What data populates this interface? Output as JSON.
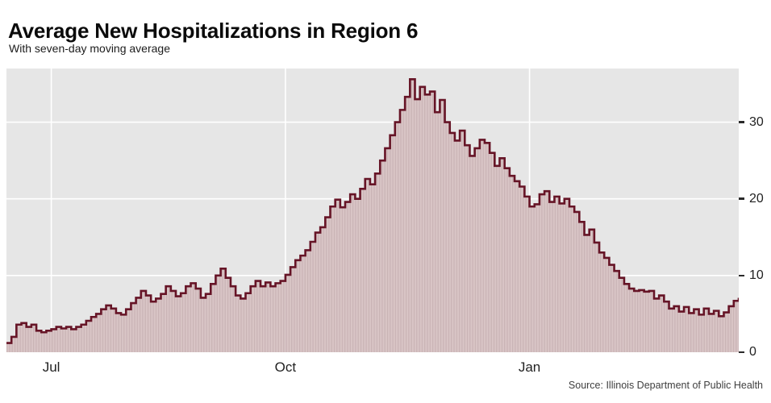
{
  "header": {
    "title": "Average New Hospitalizations in Region 6",
    "subtitle": "With seven-day moving average"
  },
  "footer": {
    "source": "Source: Illinois Department of Public Health"
  },
  "colors": {
    "accent_line": "#661426",
    "area_base": "#d9c5c6",
    "area_stripe": "#c9b3b5",
    "plot_background": "#e6e6e6",
    "gridline": "#ffffff",
    "tick_text": "#222222"
  },
  "chart_data": {
    "type": "area",
    "title": "Average New Hospitalizations in Region 6",
    "subtitle": "With seven-day moving average",
    "xlabel": "",
    "ylabel": "",
    "ylim": [
      0,
      37
    ],
    "y_ticks": [
      0,
      10,
      20,
      30
    ],
    "y_axis_side": "right",
    "grid": true,
    "legend": "none",
    "interpolation": "step",
    "x_ticks": [
      {
        "label": "Jul",
        "index": 9
      },
      {
        "label": "Oct",
        "index": 56
      },
      {
        "label": "Jan",
        "index": 105
      }
    ],
    "series": [
      {
        "name": "Seven-day moving average of new hospitalizations",
        "values": [
          1.2,
          2.0,
          3.6,
          3.8,
          3.3,
          3.6,
          2.8,
          2.6,
          2.8,
          3.0,
          3.3,
          3.1,
          3.3,
          3.0,
          3.3,
          3.6,
          4.1,
          4.6,
          5.0,
          5.6,
          6.1,
          5.7,
          5.1,
          4.9,
          5.6,
          6.4,
          7.1,
          8.0,
          7.4,
          6.6,
          7.0,
          7.6,
          8.6,
          8.0,
          7.3,
          7.7,
          8.6,
          9.0,
          8.3,
          7.1,
          7.6,
          8.9,
          10.0,
          10.9,
          9.7,
          8.6,
          7.4,
          7.0,
          7.7,
          8.6,
          9.3,
          8.6,
          9.1,
          8.6,
          9.0,
          9.3,
          10.1,
          11.1,
          12.0,
          12.6,
          13.3,
          14.4,
          15.6,
          16.3,
          17.6,
          19.0,
          19.9,
          18.9,
          19.6,
          20.6,
          20.0,
          21.3,
          22.6,
          21.9,
          23.3,
          25.0,
          26.6,
          28.3,
          30.0,
          31.6,
          33.3,
          35.6,
          33.0,
          34.6,
          33.6,
          34.0,
          31.3,
          32.9,
          30.0,
          28.6,
          27.6,
          28.9,
          27.0,
          25.6,
          26.6,
          27.7,
          27.3,
          26.0,
          24.3,
          25.3,
          24.0,
          23.0,
          22.3,
          21.6,
          20.3,
          19.0,
          19.3,
          20.6,
          21.0,
          19.6,
          20.3,
          19.4,
          20.0,
          19.0,
          18.3,
          17.0,
          15.3,
          16.0,
          14.3,
          13.0,
          12.3,
          11.4,
          10.6,
          9.7,
          8.9,
          8.3,
          8.0,
          8.1,
          7.9,
          8.0,
          7.0,
          7.4,
          6.6,
          5.7,
          6.0,
          5.3,
          5.9,
          5.1,
          5.6,
          4.9,
          5.7,
          5.0,
          5.4,
          4.7,
          5.2,
          6.0,
          6.7,
          7.1
        ]
      }
    ]
  }
}
